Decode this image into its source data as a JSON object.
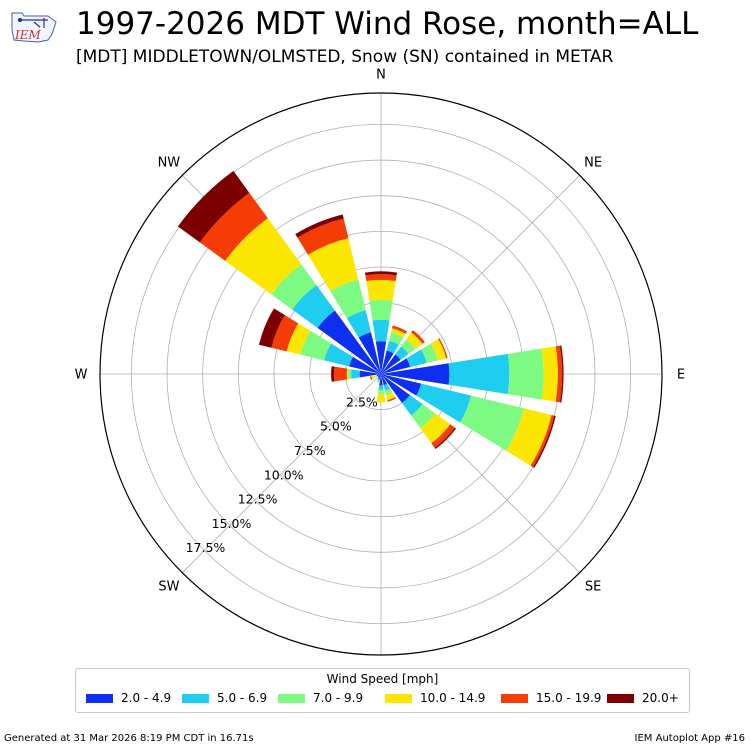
{
  "header": {
    "logo_text": "IEM",
    "title": "1997-2026 MDT Wind Rose, month=ALL",
    "subtitle": "[MDT] MIDDLETOWN/OLMSTED, Snow (SN) contained in METAR"
  },
  "chart_data": {
    "type": "wind-rose",
    "directions": [
      "N",
      "NNE",
      "NE",
      "ENE",
      "E",
      "ESE",
      "SE",
      "SSE",
      "S",
      "SSW",
      "SW",
      "WSW",
      "W",
      "WNW",
      "NW",
      "NNW"
    ],
    "direction_degrees": [
      0,
      22.5,
      45,
      67.5,
      90,
      112.5,
      135,
      157.5,
      180,
      202.5,
      225,
      247.5,
      270,
      292.5,
      315,
      337.5
    ],
    "compass_labels": [
      "N",
      "NE",
      "E",
      "SE",
      "S",
      "SW",
      "W",
      "NW"
    ],
    "radial_ticks": [
      "2.5%",
      "5.0%",
      "7.5%",
      "10.0%",
      "12.5%",
      "15.0%",
      "17.5%"
    ],
    "radial_tick_values": [
      2.5,
      5.0,
      7.5,
      10.0,
      12.5,
      15.0,
      17.5
    ],
    "rmax": 19.7,
    "legend_title": "Wind Speed [mph]",
    "bins": [
      {
        "label": "2.0 - 4.9",
        "color": "#0f2ff0"
      },
      {
        "label": "5.0 - 6.9",
        "color": "#1ecdf0"
      },
      {
        "label": "7.0 - 9.9",
        "color": "#7dfa82"
      },
      {
        "label": "10.0 - 14.9",
        "color": "#fae600"
      },
      {
        "label": "15.0 - 19.9",
        "color": "#f53c05"
      },
      {
        "label": "20.0+",
        "color": "#7d0000"
      }
    ],
    "cumulative_percent": [
      [
        2.3,
        3.8,
        5.2,
        6.6,
        7.0,
        7.2
      ],
      [
        1.7,
        2.4,
        3.0,
        3.3,
        3.5,
        3.5
      ],
      [
        1.7,
        2.4,
        3.0,
        3.6,
        3.8,
        3.8
      ],
      [
        2.1,
        3.3,
        4.1,
        4.7,
        4.8,
        4.8
      ],
      [
        4.8,
        9.0,
        11.4,
        12.4,
        12.7,
        12.8
      ],
      [
        2.9,
        6.5,
        10.3,
        12.3,
        12.5,
        12.6
      ],
      [
        2.5,
        3.6,
        4.7,
        6.0,
        6.4,
        6.5
      ],
      [
        0.8,
        1.2,
        1.5,
        1.9,
        2.0,
        2.0
      ],
      [
        0.8,
        1.1,
        1.4,
        2.0,
        2.0,
        2.0
      ],
      [
        0.4,
        0.5,
        0.6,
        0.6,
        0.6,
        0.6
      ],
      [
        0.3,
        0.3,
        0.4,
        0.4,
        0.4,
        0.4
      ],
      [
        0.3,
        0.3,
        0.4,
        0.7,
        0.8,
        0.8
      ],
      [
        1.5,
        2.1,
        2.3,
        2.4,
        3.3,
        3.5
      ],
      [
        2.3,
        4.1,
        5.8,
        6.8,
        7.9,
        8.8
      ],
      [
        5.5,
        7.7,
        9.5,
        13.5,
        15.7,
        17.6
      ],
      [
        3.0,
        4.6,
        6.8,
        9.8,
        11.2,
        11.5
      ]
    ]
  },
  "footer": {
    "left": "Generated at 31 Mar 2026 8:19 PM CDT in 16.71s",
    "right": "IEM Autoplot App #16"
  }
}
